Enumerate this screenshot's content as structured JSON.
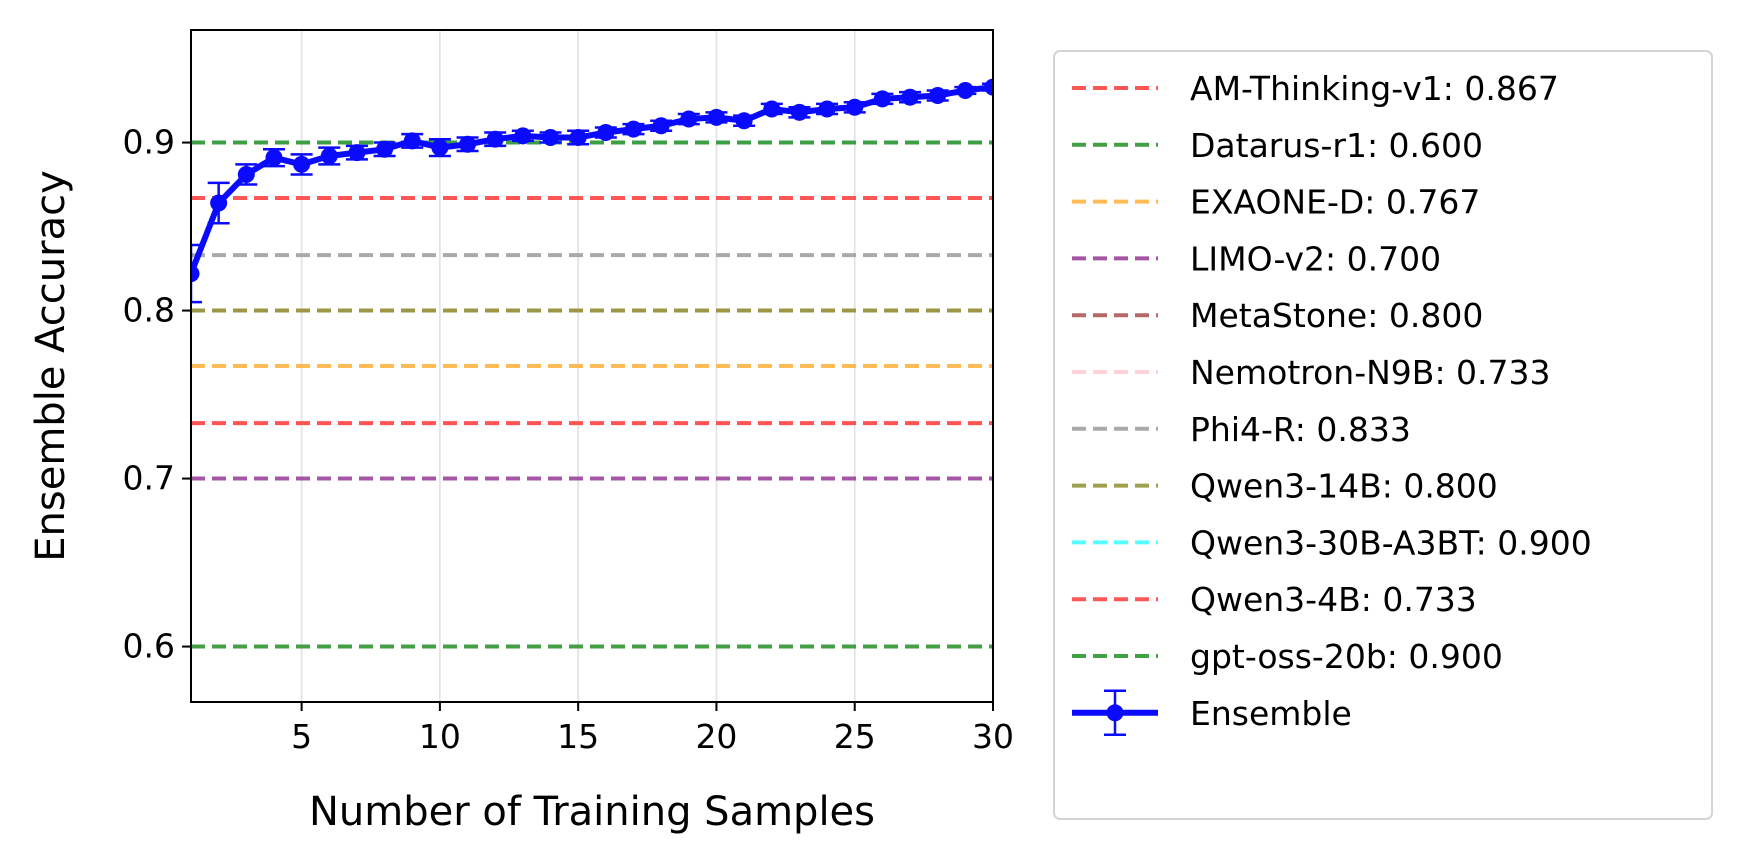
{
  "chart_data": {
    "type": "line",
    "xlabel": "Number of Training Samples",
    "ylabel": "Ensemble Accuracy",
    "xlim": [
      1,
      30
    ],
    "ylim": [
      0.567,
      0.967
    ],
    "xticks": [
      5,
      10,
      15,
      20,
      25,
      30
    ],
    "yticks": [
      0.6,
      0.7,
      0.8,
      0.9
    ],
    "xtick_labels": [
      "5",
      "10",
      "15",
      "20",
      "25",
      "30"
    ],
    "ytick_labels": [
      "0.6",
      "0.7",
      "0.8",
      "0.9"
    ],
    "grid": "vertical",
    "legend_position": "outside-right",
    "baselines": [
      {
        "name": "AM-Thinking-v1: 0.867",
        "value": 0.867,
        "color": "#ff4d4d"
      },
      {
        "name": "Datarus-r1: 0.600",
        "value": 0.6,
        "color": "#3c9a3c"
      },
      {
        "name": "EXAONE-D: 0.767",
        "value": 0.767,
        "color": "#ffb84d"
      },
      {
        "name": "LIMO-v2: 0.700",
        "value": 0.7,
        "color": "#a04da0"
      },
      {
        "name": "MetaStone: 0.800",
        "value": 0.8,
        "color": "#b4625f"
      },
      {
        "name": "Nemotron-N9B: 0.733",
        "value": 0.733,
        "color": "#ffcfd6"
      },
      {
        "name": "Phi4-R: 0.833",
        "value": 0.833,
        "color": "#a6a6a6"
      },
      {
        "name": "Qwen3-14B: 0.800",
        "value": 0.8,
        "color": "#9b9a45"
      },
      {
        "name": "Qwen3-30B-A3BT: 0.900",
        "value": 0.9,
        "color": "#4dffff"
      },
      {
        "name": "Qwen3-4B: 0.733",
        "value": 0.733,
        "color": "#ff4d4d"
      },
      {
        "name": "gpt-oss-20b: 0.900",
        "value": 0.9,
        "color": "#3c9a3c"
      }
    ],
    "series": [
      {
        "name": "Ensemble",
        "color": "#0a0aff",
        "x": [
          1,
          2,
          3,
          4,
          5,
          6,
          7,
          8,
          9,
          10,
          11,
          12,
          13,
          14,
          15,
          16,
          17,
          18,
          19,
          20,
          21,
          22,
          23,
          24,
          25,
          26,
          27,
          28,
          29,
          30
        ],
        "y": [
          0.822,
          0.864,
          0.881,
          0.891,
          0.887,
          0.892,
          0.894,
          0.896,
          0.901,
          0.897,
          0.899,
          0.902,
          0.904,
          0.903,
          0.903,
          0.906,
          0.908,
          0.91,
          0.914,
          0.915,
          0.913,
          0.92,
          0.918,
          0.92,
          0.921,
          0.926,
          0.927,
          0.928,
          0.931,
          0.933
        ],
        "err": [
          0.017,
          0.012,
          0.006,
          0.005,
          0.006,
          0.005,
          0.004,
          0.004,
          0.004,
          0.005,
          0.004,
          0.004,
          0.003,
          0.003,
          0.004,
          0.003,
          0.003,
          0.003,
          0.003,
          0.003,
          0.003,
          0.003,
          0.003,
          0.003,
          0.003,
          0.003,
          0.003,
          0.003,
          0.002,
          0.002
        ]
      }
    ]
  }
}
